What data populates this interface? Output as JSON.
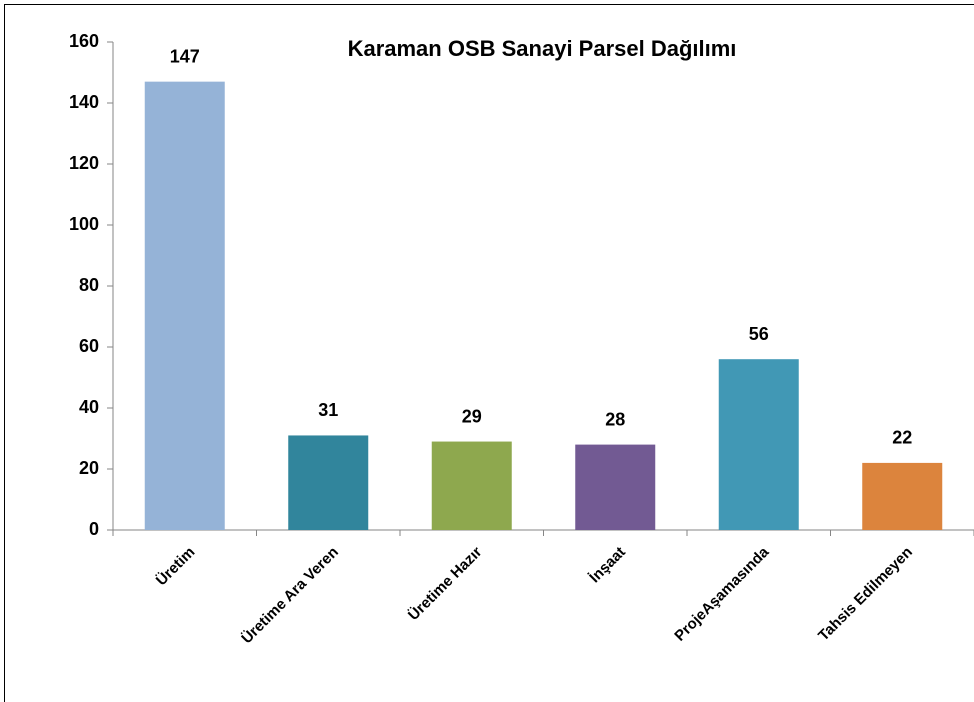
{
  "chart_data": {
    "type": "bar",
    "title": "Karaman OSB Sanayi Parsel Dağılımı",
    "categories": [
      "Üretim",
      "Üretime Ara Veren",
      "Üretime Hazır",
      "İnşaat",
      "ProjeAşamasında",
      "Tahsis Edilmeyen"
    ],
    "values": [
      147,
      31,
      29,
      28,
      56,
      22
    ],
    "colors": [
      "#95b3d7",
      "#31859c",
      "#8ea84e",
      "#725a93",
      "#4198b5",
      "#dc843d"
    ],
    "ylim": [
      0,
      160
    ],
    "yticks": [
      0,
      20,
      40,
      60,
      80,
      100,
      120,
      140,
      160
    ],
    "grid": false
  }
}
